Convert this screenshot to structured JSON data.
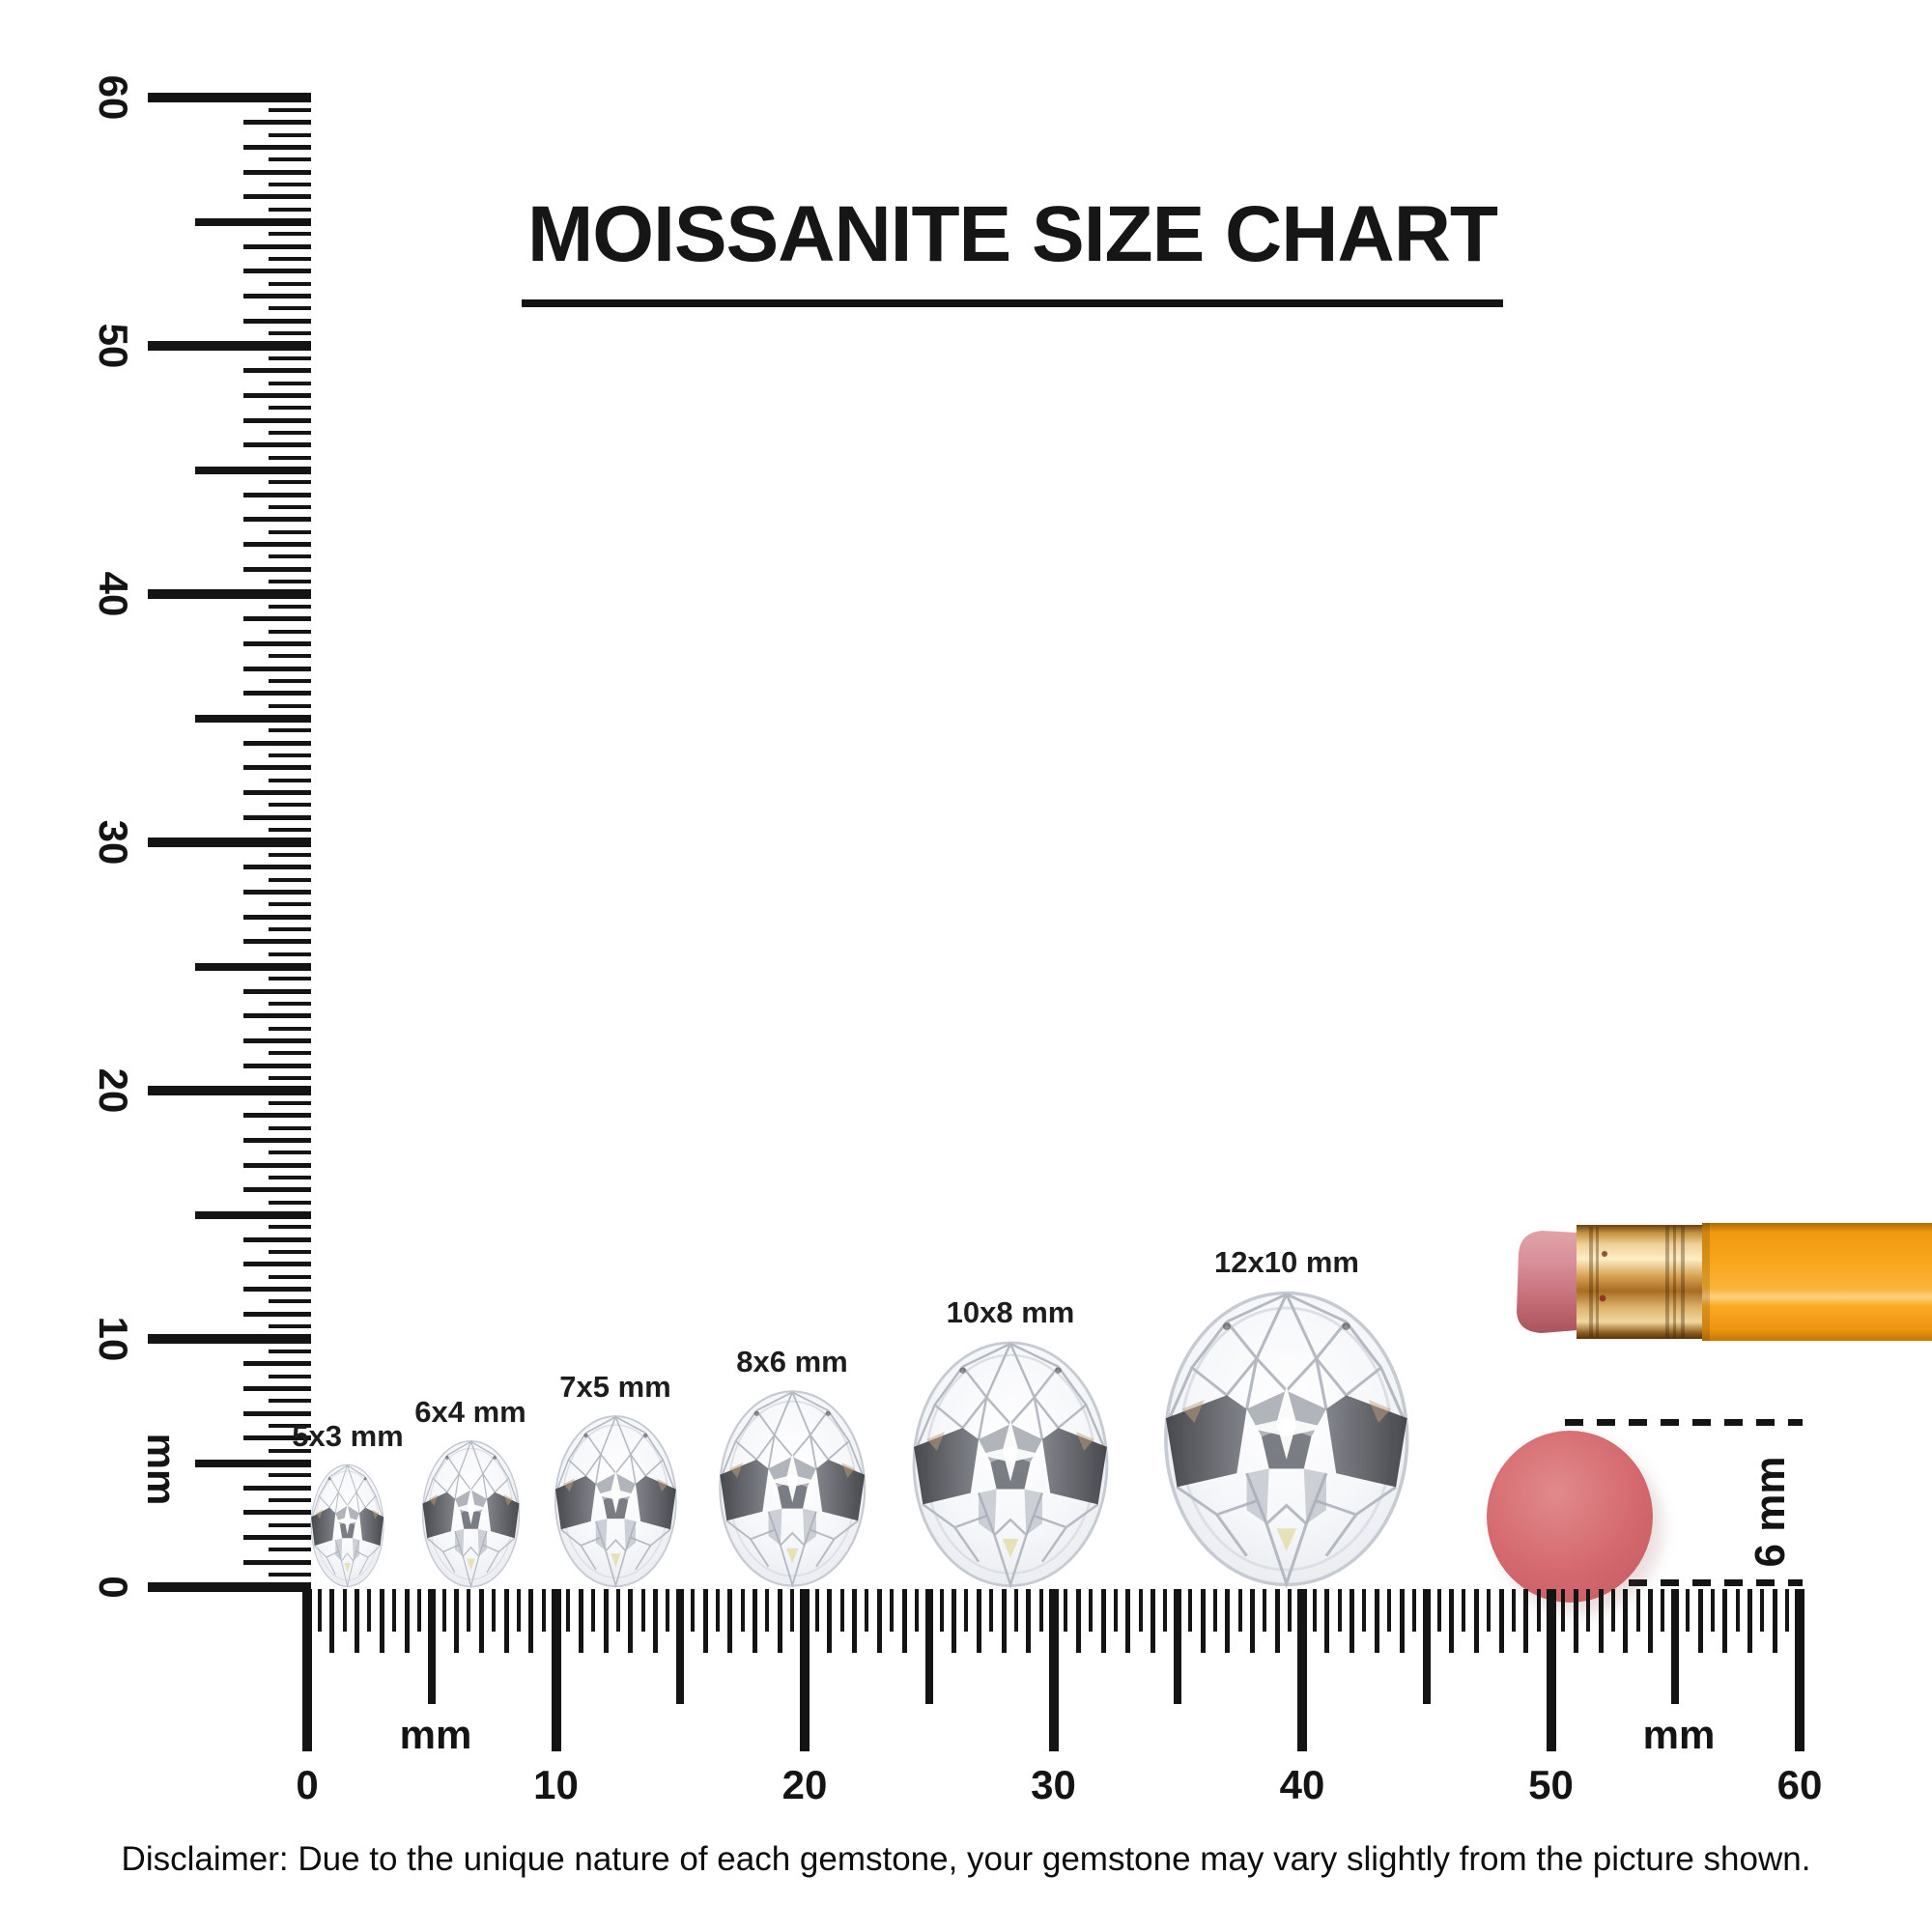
{
  "page": {
    "background": "#ffffff"
  },
  "title": {
    "text": "MOISSANITE SIZE CHART"
  },
  "rulers": {
    "vertical": {
      "unit_label": "mm",
      "tick_labels": [
        "60",
        "50",
        "40",
        "30",
        "20",
        "10",
        "0"
      ]
    },
    "horizontal": {
      "unit_label_left": "mm",
      "unit_label_right": "mm",
      "tick_labels": [
        "0",
        "10",
        "20",
        "30",
        "40",
        "50",
        "60"
      ]
    }
  },
  "gems": [
    {
      "label": "5x3 mm",
      "width_mm": 3,
      "height_mm": 5
    },
    {
      "label": "6x4 mm",
      "width_mm": 4,
      "height_mm": 6
    },
    {
      "label": "7x5 mm",
      "width_mm": 5,
      "height_mm": 7
    },
    {
      "label": "8x6 mm",
      "width_mm": 6,
      "height_mm": 8
    },
    {
      "label": "10x8 mm",
      "width_mm": 8,
      "height_mm": 10
    },
    {
      "label": "12x10 mm",
      "width_mm": 10,
      "height_mm": 12
    }
  ],
  "size_reference": {
    "eraser_label": "6 mm",
    "pencil_colors": {
      "eraser": "#cf757c",
      "ferrule": "#c8913f",
      "body": "#f9a81f"
    },
    "dot_color": "#d4696e"
  },
  "disclaimer": {
    "text": "Disclaimer: Due to the unique nature of each gemstone, your gemstone may vary slightly from the picture shown."
  }
}
